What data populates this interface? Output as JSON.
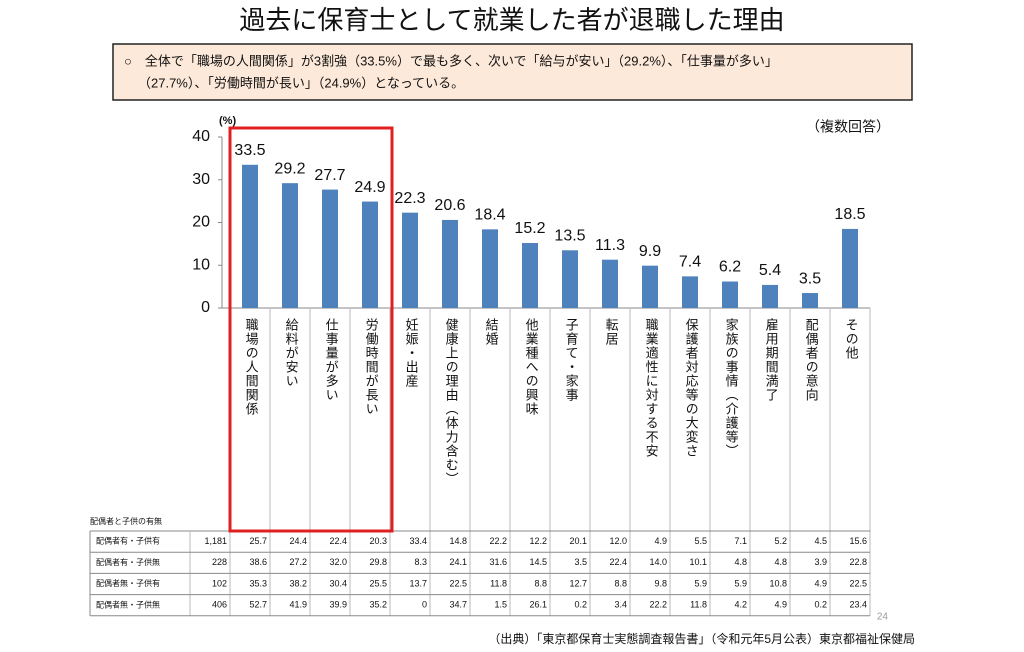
{
  "title": "過去に保育士として就業した者が退職した理由",
  "summary": [
    "○　全体で「職場の人間関係」が3割強（33.5%）で最も多く、次いで「給与が安い」（29.2%）、「仕事量が多い」",
    "（27.7%）、「労働時間が長い」（24.9%）となっている。"
  ],
  "chart_data": {
    "type": "bar",
    "y_unit": "(%)",
    "note": "（複数回答）",
    "categories": [
      "職場の人間関係",
      "給料が安い",
      "仕事量が多い",
      "労働時間が長い",
      "妊娠・出産",
      "健康上の理由（体力含む）",
      "結婚",
      "他業種への興味",
      "子育て・家事",
      "転居",
      "職業適性に対する不安",
      "保護者対応等の大変さ",
      "家族の事情（介護等）",
      "雇用期間満了",
      "配偶者の意向",
      "その他"
    ],
    "values": [
      33.5,
      29.2,
      27.7,
      24.9,
      22.3,
      20.6,
      18.4,
      15.2,
      13.5,
      11.3,
      9.9,
      7.4,
      6.2,
      5.4,
      3.5,
      18.5
    ],
    "color": "#4f81bd",
    "highlight_color": "#e02020",
    "ylim": [
      0,
      40
    ],
    "yticks": [
      0,
      10,
      20,
      30,
      40
    ]
  },
  "table": {
    "caption": "配偶者と子供の有無",
    "rows": [
      [
        "配偶者有・子供有",
        "1,181",
        "25.7",
        "24.4",
        "22.4",
        "20.3",
        "33.4",
        "14.8",
        "22.2",
        "12.2",
        "20.1",
        "12.0",
        "4.9",
        "5.5",
        "7.1",
        "5.2",
        "4.5",
        "15.6"
      ],
      [
        "配偶者有・子供無",
        "228",
        "38.6",
        "27.2",
        "32.0",
        "29.8",
        "8.3",
        "24.1",
        "31.6",
        "14.5",
        "3.5",
        "22.4",
        "14.0",
        "10.1",
        "4.8",
        "4.8",
        "3.9",
        "22.8"
      ],
      [
        "配偶者無・子供有",
        "102",
        "35.3",
        "38.2",
        "30.4",
        "25.5",
        "13.7",
        "22.5",
        "11.8",
        "8.8",
        "12.7",
        "8.8",
        "9.8",
        "5.9",
        "5.9",
        "10.8",
        "4.9",
        "22.5"
      ],
      [
        "配偶者無・子供無",
        "406",
        "52.7",
        "41.9",
        "39.9",
        "35.2",
        "0",
        "34.7",
        "1.5",
        "26.1",
        "0.2",
        "3.4",
        "22.2",
        "11.8",
        "4.2",
        "4.9",
        "0.2",
        "23.4"
      ]
    ]
  },
  "page_number": "24",
  "source": "（出典）「東京都保育士実態調査報告書」（令和元年5月公表）東京都福祉保健局"
}
